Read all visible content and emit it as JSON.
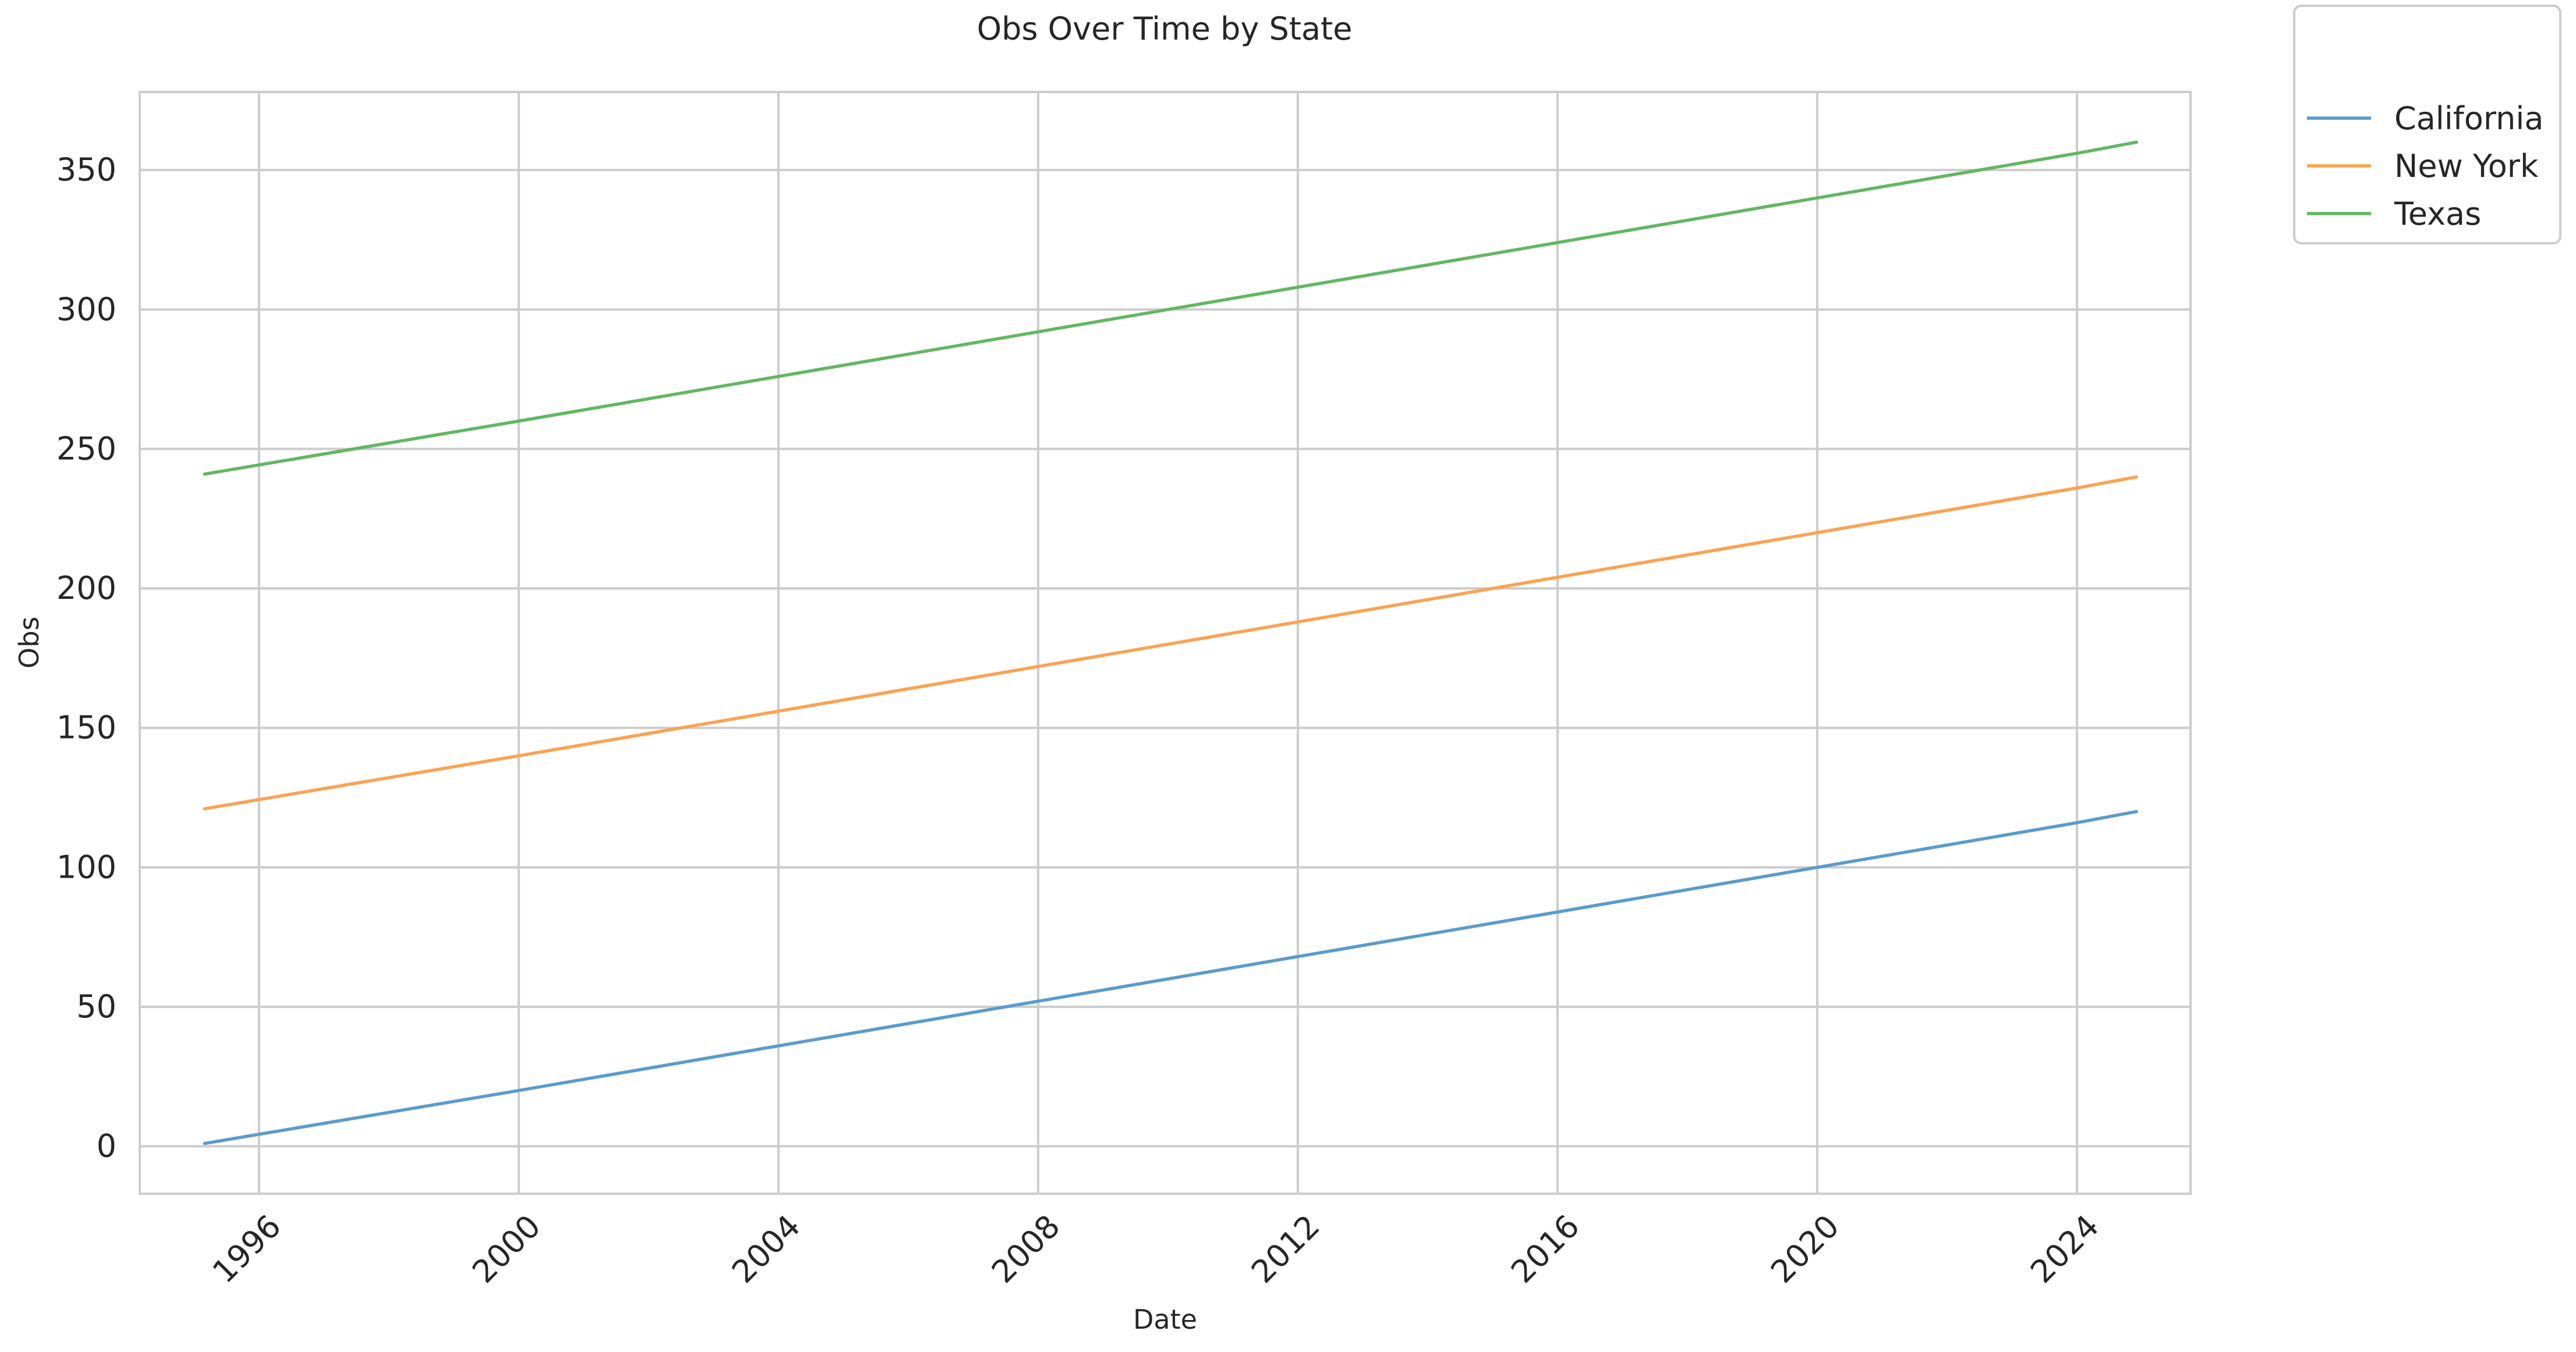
{
  "chart_data": {
    "type": "line",
    "title": "Obs Over Time by State",
    "xlabel": "Date",
    "ylabel": "Obs",
    "x_type": "date",
    "xlim": [
      "1994-03-01",
      "2025-10-01"
    ],
    "ylim": [
      -17,
      378
    ],
    "x_ticks": [
      "1996",
      "2000",
      "2004",
      "2008",
      "2012",
      "2016",
      "2020",
      "2024"
    ],
    "y_ticks": [
      "0",
      "50",
      "100",
      "150",
      "200",
      "250",
      "300",
      "350"
    ],
    "grid": true,
    "legend_position": "outside-top-right",
    "series": [
      {
        "name": "California",
        "color": "#5b9bcb",
        "points": [
          [
            "1995-03-01",
            1
          ],
          [
            "2000-01-01",
            20
          ],
          [
            "2004-01-01",
            36
          ],
          [
            "2008-01-01",
            52
          ],
          [
            "2012-01-01",
            68
          ],
          [
            "2016-01-01",
            84
          ],
          [
            "2020-01-01",
            100
          ],
          [
            "2024-01-01",
            116
          ],
          [
            "2024-12-01",
            120
          ]
        ]
      },
      {
        "name": "New York",
        "color": "#fca252",
        "points": [
          [
            "1995-03-01",
            121
          ],
          [
            "2000-01-01",
            140
          ],
          [
            "2004-01-01",
            156
          ],
          [
            "2008-01-01",
            172
          ],
          [
            "2012-01-01",
            188
          ],
          [
            "2016-01-01",
            204
          ],
          [
            "2020-01-01",
            220
          ],
          [
            "2024-01-01",
            236
          ],
          [
            "2024-12-01",
            240
          ]
        ]
      },
      {
        "name": "Texas",
        "color": "#63b663",
        "points": [
          [
            "1995-03-01",
            241
          ],
          [
            "2000-01-01",
            260
          ],
          [
            "2004-01-01",
            276
          ],
          [
            "2008-01-01",
            292
          ],
          [
            "2012-01-01",
            308
          ],
          [
            "2016-01-01",
            324
          ],
          [
            "2020-01-01",
            340
          ],
          [
            "2024-01-01",
            356
          ],
          [
            "2024-12-01",
            360
          ]
        ]
      }
    ]
  }
}
